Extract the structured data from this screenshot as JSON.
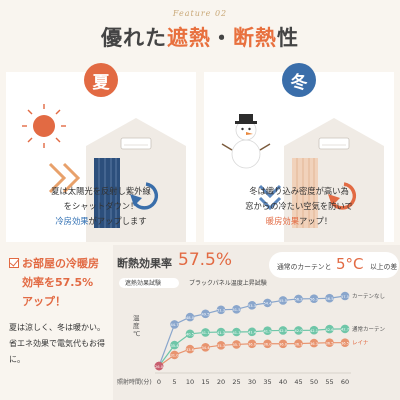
{
  "header": {
    "feature": "Feature 02",
    "title_pre": "優れた",
    "title_hl1": "遮熱",
    "title_dot": "・",
    "title_hl2": "断熱",
    "title_post": "性"
  },
  "cards": {
    "summer": {
      "label": "夏",
      "line1": "夏は太陽光を反射し紫外線",
      "line2": "をシャットダウン！",
      "accent": "冷房効果",
      "line3_tail": "がアップします",
      "color": "#e26a43"
    },
    "winter": {
      "label": "冬",
      "line1": "冬は織り込み密度が高い為",
      "line2": "窓からの冷たい空気を防いで",
      "accent": "暖房効果",
      "line3_tail": "アップ！",
      "color": "#3a6eaa"
    }
  },
  "side": {
    "title1": "お部屋の冷暖房",
    "title2": "効率を57.5%",
    "title3": "アップ！",
    "body1": "夏は涼しく、冬は暖かい。",
    "body2": "省エネ効果で電気代もお得",
    "body3": "に。"
  },
  "chart_header": {
    "title": "断熱効果率",
    "pct": "57.5%",
    "bubble_pre": "通常のカーテンと",
    "bubble_val": "5°C",
    "bubble_post": "以上の差"
  },
  "chart_data": {
    "type": "line",
    "legend": [
      "遮熱効果試験",
      "ブラックパネル温度上昇試験"
    ],
    "ylabel": "温度℃",
    "xlabel": "照射時間(分)",
    "x": [
      0,
      5,
      10,
      15,
      20,
      25,
      30,
      35,
      40,
      45,
      50,
      55,
      60
    ],
    "series": [
      {
        "name": "カーテンなし",
        "color": "#8aa6cc",
        "values": [
          26.0,
          44.7,
          48.0,
          49.5,
          51.3,
          51.5,
          53.3,
          54.4,
          55.5,
          56.2,
          56.3,
          56.5,
          57.5
        ]
      },
      {
        "name": "通常カーテン",
        "color": "#6fc6a8",
        "values": [
          26.0,
          35.4,
          40.5,
          41.1,
          41.3,
          41.3,
          41.4,
          41.9,
          42.0,
          42.0,
          42.1,
          42.6,
          42.7
        ]
      },
      {
        "name": "レイナ",
        "color": "#e8946f",
        "values": [
          26.0,
          31.0,
          33.6,
          34.4,
          35.3,
          35.7,
          36.0,
          36.0,
          36.0,
          36.1,
          36.3,
          36.5,
          36.5
        ]
      }
    ],
    "right_labels": [
      "カーテンなし",
      "通常カーテン",
      "レイナ"
    ]
  }
}
